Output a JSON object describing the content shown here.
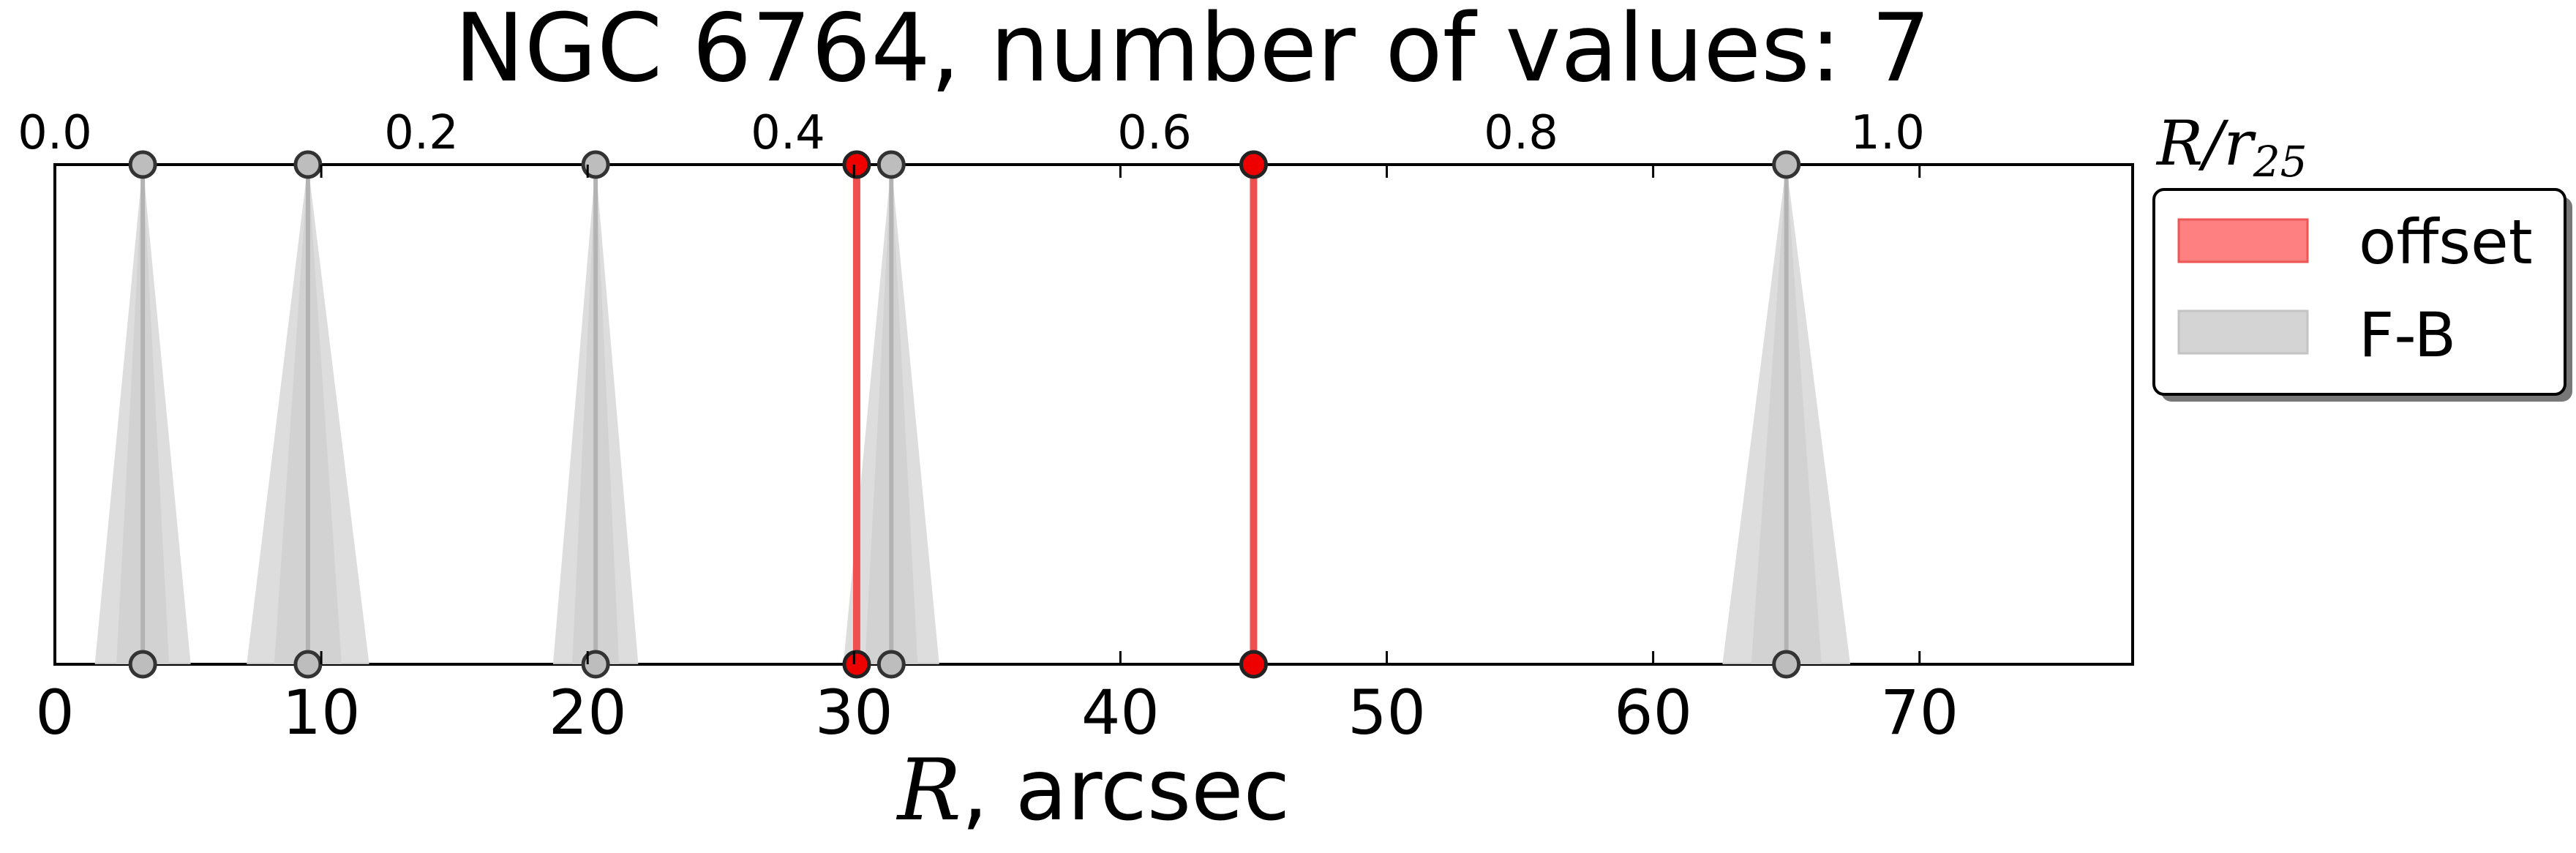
{
  "chart_data": {
    "type": "line",
    "title": "NGC 6764, number of values: 7",
    "xlabel_var": "R",
    "xlabel_rest": ", arcsec",
    "xlim": [
      0,
      78
    ],
    "xticks": [
      0,
      10,
      20,
      30,
      40,
      50,
      60,
      70
    ],
    "top_axis": {
      "label_main": "R/r",
      "label_sub": "25",
      "ticks": [
        0.0,
        0.2,
        0.4,
        0.6,
        0.8,
        1.0
      ],
      "tick_labels": [
        "0.0",
        "0.2",
        "0.4",
        "0.6",
        "0.8",
        "1.0"
      ],
      "r25_arcsec": 68.8
    },
    "legend": {
      "location": "upper right, outside plot",
      "entries": [
        {
          "label": "offset",
          "color": "#ff6666"
        },
        {
          "label": "F-B",
          "color": "#c8c8c8"
        }
      ]
    },
    "series": [
      {
        "name": "offset",
        "color": "#ee4444",
        "marker_color": "#ff0000",
        "x": [
          30.1,
          45.0
        ]
      },
      {
        "name": "F-B",
        "color": "#aaaaaa",
        "marker_color": "#bbbbbb",
        "x": [
          3.3,
          9.5,
          20.3,
          31.4,
          65.0
        ],
        "xerr": [
          1.8,
          2.3,
          1.6,
          1.8,
          2.4
        ]
      }
    ]
  }
}
